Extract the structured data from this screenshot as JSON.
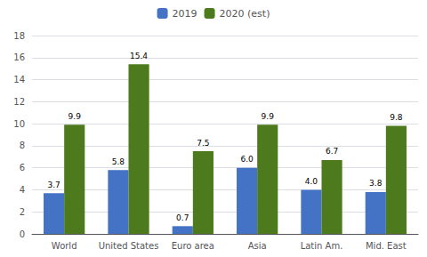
{
  "chart_data": {
    "type": "bar",
    "categories": [
      "World",
      "United States",
      "Euro area",
      "Asia",
      "Latin Am.",
      "Mid. East"
    ],
    "series": [
      {
        "name": "2019",
        "color": "#4472C4",
        "values": [
          3.7,
          5.8,
          0.7,
          6.0,
          4.0,
          3.8
        ],
        "value_labels": [
          "3.7",
          "5.8",
          "0.7",
          "6.0",
          "4.0",
          "3.8"
        ]
      },
      {
        "name": "2020 (est)",
        "color": "#4E7A1E",
        "values": [
          9.9,
          15.4,
          7.5,
          9.9,
          6.7,
          9.8
        ],
        "value_labels": [
          "9.9",
          "15.4",
          "7.5",
          "9.9",
          "6.7",
          "9.8"
        ]
      }
    ],
    "ylim": [
      0,
      18
    ],
    "yticks": [
      0,
      2,
      4,
      6,
      8,
      10,
      12,
      14,
      16,
      18
    ],
    "grid": true,
    "legend": "top",
    "data_labels": true
  }
}
